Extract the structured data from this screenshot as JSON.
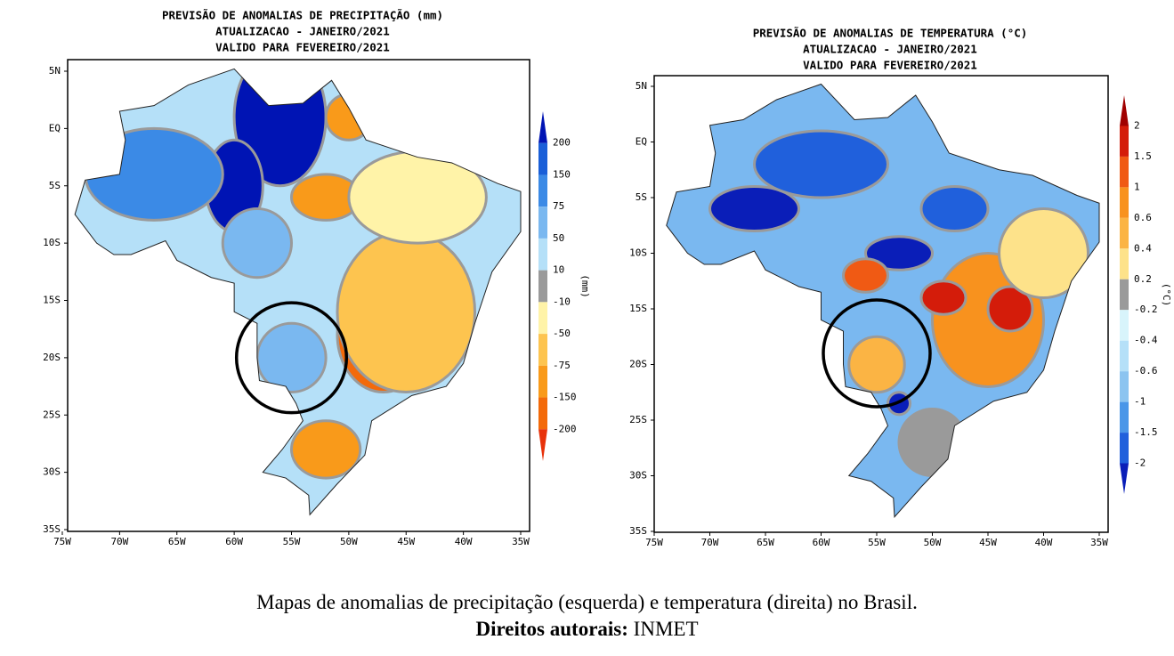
{
  "maps": [
    {
      "title": [
        "PREVISÃO DE ANOMALIAS DE PRECIPITAÇÃO (mm)",
        "ATUALIZACAO - JANEIRO/2021",
        "VALIDO PARA FEVEREIRO/2021"
      ],
      "lat_labels": [
        "5N",
        "EQ",
        "5S",
        "10S",
        "15S",
        "20S",
        "25S",
        "30S",
        "35S"
      ],
      "lon_labels": [
        "75W",
        "70W",
        "65W",
        "60W",
        "55W",
        "50W",
        "45W",
        "40W",
        "35W"
      ],
      "colorbar": {
        "labels": [
          "200",
          "150",
          "75",
          "50",
          "10",
          "-10",
          "-50",
          "-75",
          "-150",
          "-200"
        ],
        "unit": "(mm)"
      }
    },
    {
      "title": [
        "PREVISÃO DE ANOMALIAS DE TEMPERATURA (°C)",
        "ATUALIZACAO - JANEIRO/2021",
        "VALIDO PARA FEVEREIRO/2021"
      ],
      "lat_labels": [
        "5N",
        "EQ",
        "5S",
        "10S",
        "15S",
        "20S",
        "25S",
        "30S",
        "35S"
      ],
      "lon_labels": [
        "75W",
        "70W",
        "65W",
        "60W",
        "55W",
        "50W",
        "45W",
        "40W",
        "35W"
      ],
      "colorbar": {
        "labels": [
          "2",
          "1.5",
          "1",
          "0.6",
          "0.4",
          "0.2",
          "-0.2",
          "-0.4",
          "-0.6",
          "-1",
          "-1.5",
          "-2"
        ],
        "unit": "(°C)"
      }
    }
  ],
  "caption": {
    "text": "Mapas de anomalias de precipitação (esquerda) e temperatura (direita) no Brasil.",
    "credit_label": "Direitos autorais:",
    "credit": "INMET"
  }
}
